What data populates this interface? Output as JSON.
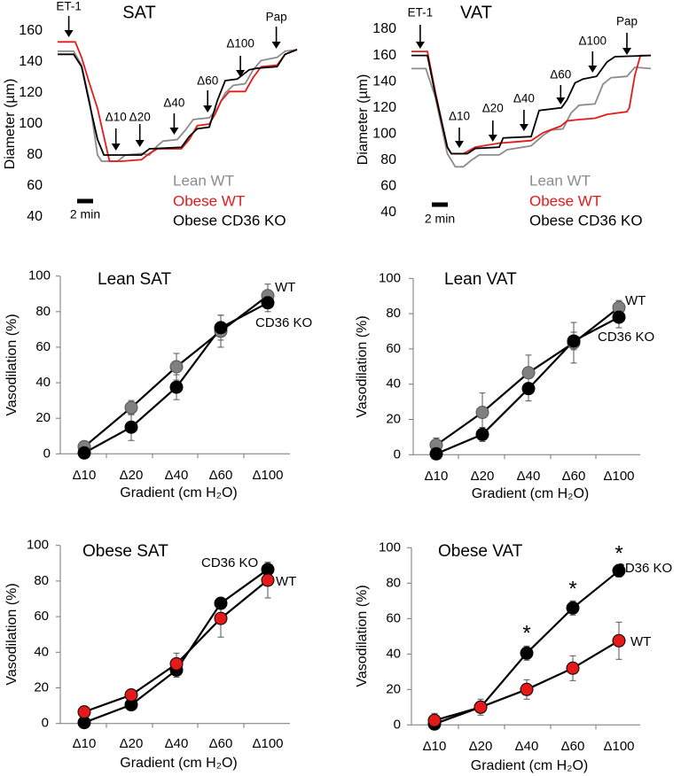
{
  "chart_data": [
    {
      "type": "line",
      "title": "SAT",
      "ylabel": "Diameter (µm)",
      "ylim": [
        40,
        160
      ],
      "yticks": [
        "40",
        "60",
        "80",
        "100",
        "120",
        "140",
        "160"
      ],
      "scale_bar_label": "2 min",
      "scale_bar_minutes": 2,
      "annotations": [
        {
          "label": "ET-1",
          "t": 1.4
        },
        {
          "label": "Δ10",
          "t": 7.3
        },
        {
          "label": "Δ20",
          "t": 10.3
        },
        {
          "label": "Δ40",
          "t": 14.6
        },
        {
          "label": "Δ60",
          "t": 18.8
        },
        {
          "label": "Δ100",
          "t": 22.9
        },
        {
          "label": "Pap",
          "t": 27.4
        }
      ],
      "series": [
        {
          "name": "Lean WT",
          "color": "#8c8c8c",
          "points": [
            [
              0,
              147
            ],
            [
              2,
              147
            ],
            [
              3,
              138
            ],
            [
              4,
              115
            ],
            [
              5,
              80
            ],
            [
              5.5,
              76
            ],
            [
              7.5,
              76
            ],
            [
              8.5,
              80
            ],
            [
              10.5,
              81
            ],
            [
              11.5,
              80
            ],
            [
              12.5,
              86
            ],
            [
              13.2,
              89
            ],
            [
              15,
              90
            ],
            [
              16,
              96
            ],
            [
              17,
              103
            ],
            [
              19,
              104
            ],
            [
              20,
              110
            ],
            [
              21,
              120
            ],
            [
              22,
              125
            ],
            [
              23.5,
              126
            ],
            [
              24.5,
              135
            ],
            [
              25.5,
              141
            ],
            [
              27.5,
              143
            ],
            [
              28.5,
              147
            ],
            [
              30,
              148
            ]
          ]
        },
        {
          "name": "Obese WT",
          "color": "#e41a1a",
          "points": [
            [
              0,
              153
            ],
            [
              2.2,
              153
            ],
            [
              3,
              143
            ],
            [
              4,
              126
            ],
            [
              5,
              110
            ],
            [
              6.5,
              76
            ],
            [
              8,
              76
            ],
            [
              10.5,
              77
            ],
            [
              11.5,
              81
            ],
            [
              12.5,
              84
            ],
            [
              15.5,
              84
            ],
            [
              16.5,
              90
            ],
            [
              17.5,
              99
            ],
            [
              19,
              100
            ],
            [
              19.7,
              106
            ],
            [
              20.5,
              115
            ],
            [
              21.5,
              121
            ],
            [
              23.5,
              121
            ],
            [
              24.5,
              130
            ],
            [
              25.5,
              137
            ],
            [
              27.5,
              138
            ],
            [
              28.5,
              145
            ],
            [
              30,
              148
            ]
          ]
        },
        {
          "name": "Obese CD36 KO",
          "color": "#000000",
          "points": [
            [
              0,
              145
            ],
            [
              2,
              145
            ],
            [
              3,
              137
            ],
            [
              4,
              113
            ],
            [
              5,
              90
            ],
            [
              5.8,
              80
            ],
            [
              10.5,
              80
            ],
            [
              11.5,
              84
            ],
            [
              15.5,
              85
            ],
            [
              16.5,
              92
            ],
            [
              17.5,
              97
            ],
            [
              19,
              98
            ],
            [
              20,
              115
            ],
            [
              21,
              128
            ],
            [
              22.5,
              129
            ],
            [
              24,
              135
            ],
            [
              25,
              136
            ],
            [
              27.5,
              137
            ],
            [
              28.5,
              145
            ],
            [
              30,
              148
            ]
          ]
        }
      ]
    },
    {
      "type": "line",
      "title": "VAT",
      "ylabel": "Diameter (µm)",
      "ylim": [
        40,
        180
      ],
      "yticks": [
        "40",
        "60",
        "80",
        "100",
        "120",
        "140",
        "160",
        "180"
      ],
      "scale_bar_label": "2 min",
      "scale_bar_minutes": 2,
      "annotations": [
        {
          "label": "ET-1",
          "t": 1.1
        },
        {
          "label": "Δ10",
          "t": 6.0
        },
        {
          "label": "Δ20",
          "t": 10.2
        },
        {
          "label": "Δ40",
          "t": 14.1
        },
        {
          "label": "Δ60",
          "t": 18.7
        },
        {
          "label": "Δ100",
          "t": 22.7
        },
        {
          "label": "Pap",
          "t": 27.0
        }
      ],
      "series": [
        {
          "name": "Lean WT",
          "color": "#8c8c8c",
          "points": [
            [
              0,
              150
            ],
            [
              1.8,
              150
            ],
            [
              3,
              128
            ],
            [
              4.5,
              85
            ],
            [
              5.5,
              75
            ],
            [
              6.5,
              75
            ],
            [
              7.5,
              80
            ],
            [
              8.5,
              84
            ],
            [
              11,
              84
            ],
            [
              12,
              88
            ],
            [
              15,
              91
            ],
            [
              16.5,
              99
            ],
            [
              17.5,
              103
            ],
            [
              19,
              104
            ],
            [
              20,
              116
            ],
            [
              21,
              122
            ],
            [
              23,
              123
            ],
            [
              24,
              138
            ],
            [
              25,
              143
            ],
            [
              27,
              144
            ],
            [
              28,
              151
            ],
            [
              30,
              150
            ]
          ]
        },
        {
          "name": "Obese WT",
          "color": "#e41a1a",
          "points": [
            [
              0,
              163
            ],
            [
              2,
              163
            ],
            [
              3,
              132
            ],
            [
              4.5,
              90
            ],
            [
              5,
              85
            ],
            [
              6.5,
              85
            ],
            [
              8,
              90
            ],
            [
              11,
              93
            ],
            [
              13,
              94
            ],
            [
              15,
              95
            ],
            [
              16.5,
              101
            ],
            [
              18.7,
              106
            ],
            [
              19.5,
              110
            ],
            [
              21,
              111
            ],
            [
              23,
              112
            ],
            [
              24.5,
              115
            ],
            [
              27,
              117
            ],
            [
              27.3,
              120
            ],
            [
              28,
              145
            ],
            [
              28.7,
              160
            ],
            [
              30,
              160
            ]
          ]
        },
        {
          "name": "Obese CD36 KO",
          "color": "#000000",
          "points": [
            [
              0,
              160
            ],
            [
              2,
              160
            ],
            [
              3,
              130
            ],
            [
              4.5,
              90
            ],
            [
              5,
              85
            ],
            [
              7,
              85
            ],
            [
              8,
              89
            ],
            [
              11,
              90
            ],
            [
              11.5,
              97
            ],
            [
              15,
              98
            ],
            [
              16,
              118
            ],
            [
              18.8,
              120
            ],
            [
              19.5,
              126
            ],
            [
              20.5,
              139
            ],
            [
              21.5,
              142
            ],
            [
              23.2,
              144
            ],
            [
              24.5,
              155
            ],
            [
              25.5,
              159
            ],
            [
              30,
              160
            ]
          ]
        }
      ]
    },
    {
      "type": "line",
      "title": "Lean SAT",
      "xlabel": "Gradient (cm H₂O)",
      "ylabel": "Vasodilation (%)",
      "ylim": [
        0,
        100
      ],
      "yticks": [
        "0",
        "20",
        "40",
        "60",
        "80",
        "100"
      ],
      "categories": [
        "Δ10",
        "Δ20",
        "Δ40",
        "Δ60",
        "Δ100"
      ],
      "series": [
        {
          "name": "WT",
          "color": "#808080",
          "values": [
            4,
            26,
            49,
            69,
            89
          ],
          "errors": [
            2.5,
            4,
            7.5,
            9,
            6.5
          ]
        },
        {
          "name": "CD36 KO",
          "color": "#000000",
          "values": [
            0.5,
            15,
            37.5,
            71,
            85
          ],
          "errors": [
            1,
            7.5,
            7,
            7,
            5
          ]
        }
      ],
      "significance": []
    },
    {
      "type": "line",
      "title": "Lean VAT",
      "xlabel": "Gradient (cm H₂O)",
      "ylabel": "Vasodilation (%)",
      "ylim": [
        0,
        100
      ],
      "yticks": [
        "0",
        "20",
        "40",
        "60",
        "80",
        "100"
      ],
      "categories": [
        "Δ10",
        "Δ20",
        "Δ40",
        "Δ60",
        "Δ100"
      ],
      "series": [
        {
          "name": "WT",
          "color": "#808080",
          "values": [
            5.5,
            24,
            46.5,
            63.5,
            83.5
          ],
          "errors": [
            4,
            11,
            10,
            11.5,
            4
          ]
        },
        {
          "name": "CD36 KO",
          "color": "#000000",
          "values": [
            0.5,
            11.5,
            37.5,
            64.5,
            78
          ],
          "errors": [
            1,
            4,
            7,
            5,
            6
          ]
        }
      ],
      "significance": []
    },
    {
      "type": "line",
      "title": "Obese SAT",
      "xlabel": "Gradient (cm H₂O)",
      "ylabel": "Vasodilation (%)",
      "ylim": [
        0,
        100
      ],
      "yticks": [
        "0",
        "20",
        "40",
        "60",
        "80",
        "100"
      ],
      "categories": [
        "Δ10",
        "Δ20",
        "Δ40",
        "Δ60",
        "Δ100"
      ],
      "series": [
        {
          "name": "CD36 KO",
          "color": "#000000",
          "values": [
            0.5,
            10.5,
            30,
            67.5,
            86.5
          ],
          "errors": [
            1,
            1.5,
            4,
            2.5,
            4
          ]
        },
        {
          "name": "WT",
          "color": "#e41a1a",
          "values": [
            6.5,
            16,
            33.5,
            59,
            80.5
          ],
          "errors": [
            1,
            1,
            6,
            10.5,
            10
          ]
        }
      ],
      "significance": []
    },
    {
      "type": "line",
      "title": "Obese VAT",
      "xlabel": "Gradient (cm H₂O)",
      "ylabel": "Vasodilation (%)",
      "ylim": [
        0,
        100
      ],
      "yticks": [
        "0",
        "20",
        "40",
        "60",
        "80",
        "100"
      ],
      "categories": [
        "Δ10",
        "Δ20",
        "Δ40",
        "Δ60",
        "Δ100"
      ],
      "series": [
        {
          "name": "CD36 KO",
          "color": "#000000",
          "values": [
            0.5,
            10,
            40.5,
            66,
            87
          ],
          "errors": [
            1,
            3,
            4,
            4,
            3.5
          ]
        },
        {
          "name": "WT",
          "color": "#e41a1a",
          "values": [
            2.5,
            10,
            20,
            32,
            47.5
          ],
          "errors": [
            4,
            4.5,
            5.5,
            7,
            10.5
          ]
        }
      ],
      "significance": [
        {
          "category": "Δ40",
          "label": "*"
        },
        {
          "category": "Δ60",
          "label": "*"
        },
        {
          "category": "Δ100",
          "label": "*"
        }
      ]
    }
  ]
}
